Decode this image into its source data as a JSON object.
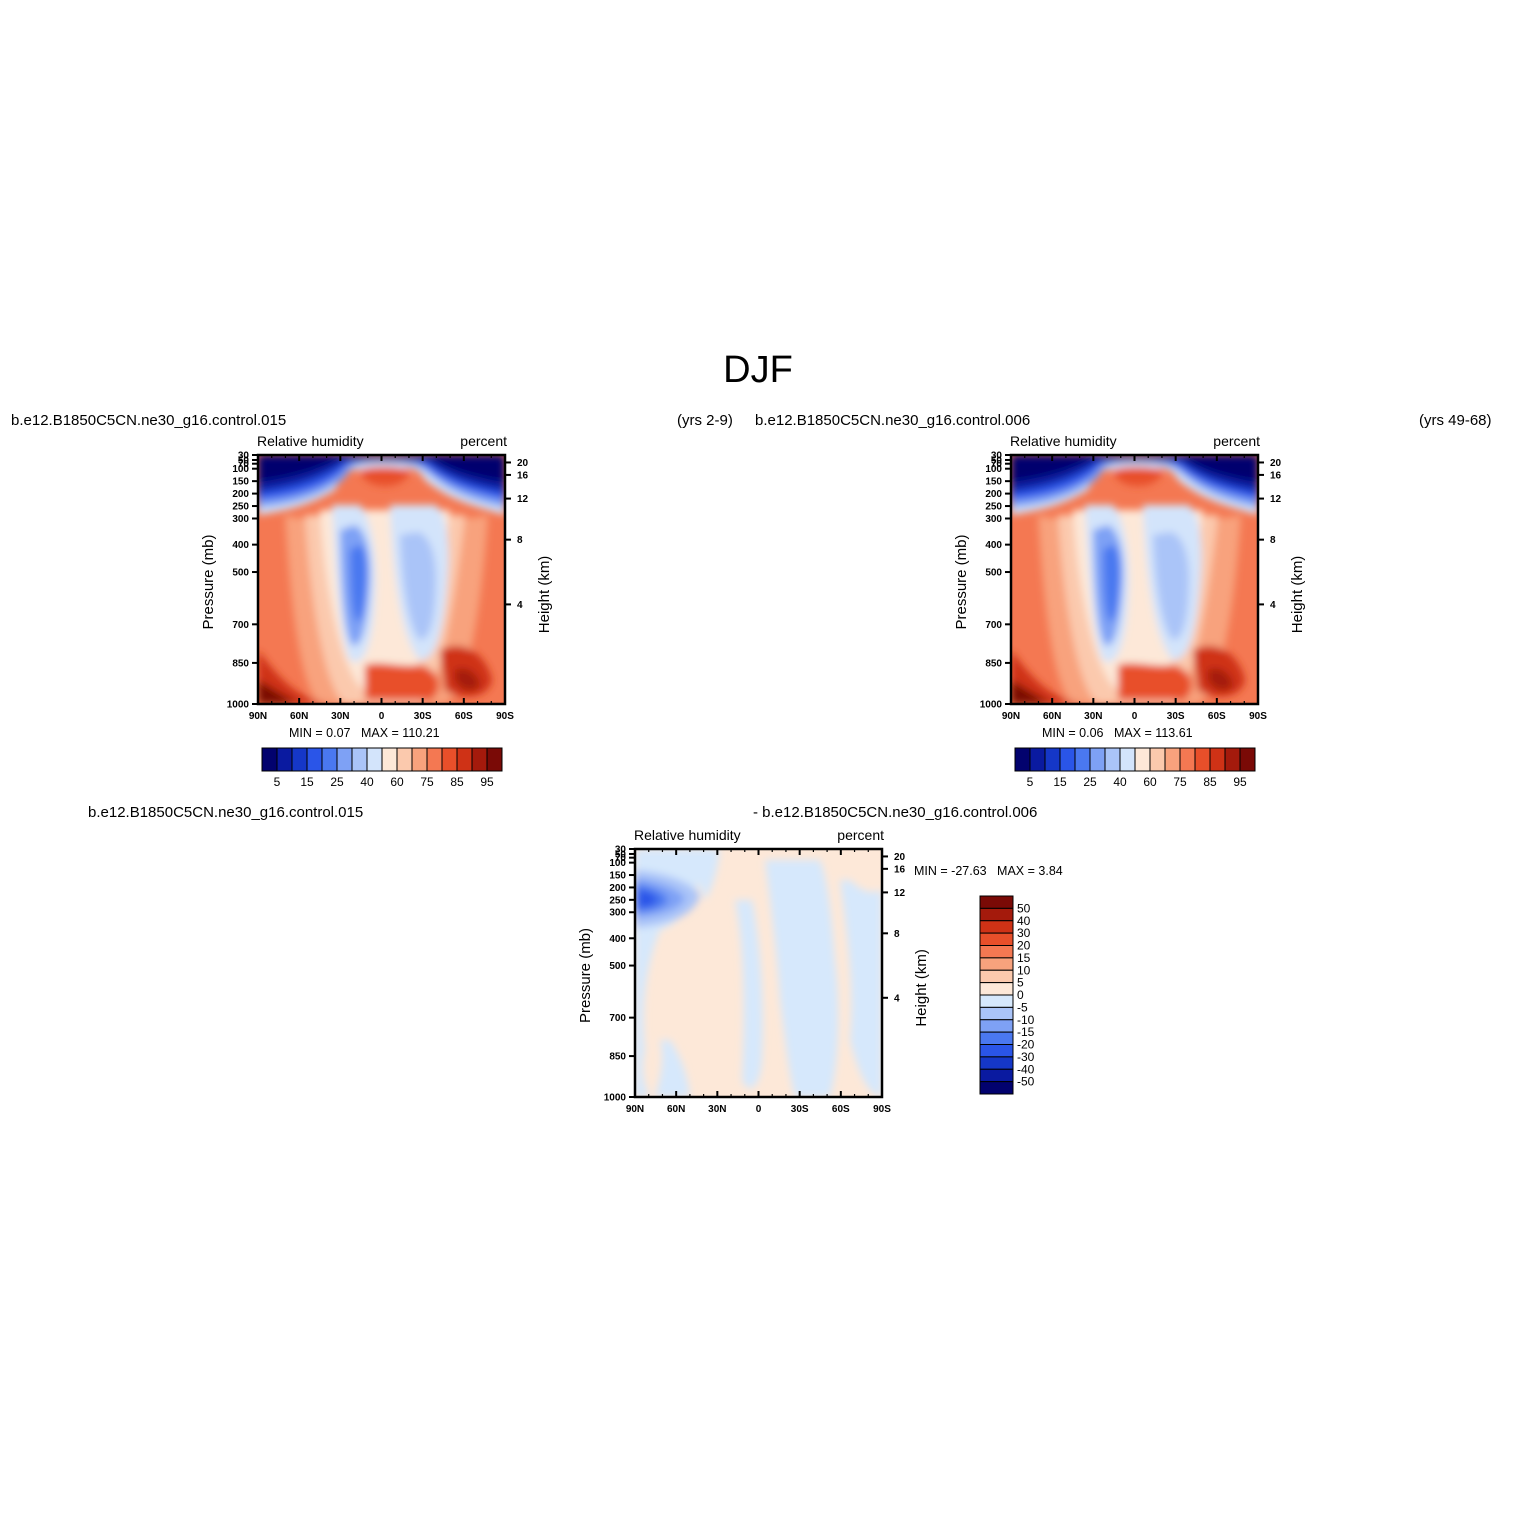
{
  "figure": {
    "title": "DJF",
    "panel1_case": "b.e12.B1850C5CN.ne30_g16.control.015",
    "panel1_years": "(yrs 2-9)",
    "panel2_case": "b.e12.B1850C5CN.ne30_g16.control.006",
    "panel2_years": "(yrs 49-68)",
    "panel3_case_a": "b.e12.B1850C5CN.ne30_g16.control.015",
    "panel3_case_b": "- b.e12.B1850C5CN.ne30_g16.control.006"
  },
  "colors": {
    "abs": [
      "#02026e",
      "#0a1aa0",
      "#1537c8",
      "#2a55e8",
      "#4a78f0",
      "#7ea1f5",
      "#aac4f8",
      "#d3e4fb",
      "#fde8d8",
      "#fbc9ad",
      "#f8a27d",
      "#f47852",
      "#e84f2a",
      "#cf3216",
      "#a41a0c",
      "#7a0a06"
    ],
    "diff": [
      "#02026e",
      "#0a1aa0",
      "#1537c8",
      "#2a55e8",
      "#4a78f0",
      "#7ea1f5",
      "#aac4f8",
      "#d6e8fc",
      "#fde8d8",
      "#fbc9ad",
      "#f8a27d",
      "#f47852",
      "#e84f2a",
      "#cf3216",
      "#a41a0c",
      "#7a0a06"
    ]
  },
  "chart_data": [
    {
      "type": "heatmap",
      "title": "Relative humidity",
      "units": "percent",
      "ylabel": "Pressure (mb)",
      "ylabel_right": "Height (km)",
      "x_ticks": [
        "90N",
        "60N",
        "30N",
        "0",
        "30S",
        "60S",
        "90S"
      ],
      "y_ticks": [
        "30",
        "50",
        "70",
        "100",
        "150",
        "200",
        "250",
        "300",
        "400",
        "500",
        "700",
        "850",
        "1000"
      ],
      "height_ticks": [
        "20",
        "16",
        "12",
        "8",
        "4"
      ],
      "min_label": "MIN =",
      "min_value": "0.07",
      "max_label": "MAX =",
      "max_value": "110.21",
      "colorbar_labels": [
        "5",
        "15",
        "25",
        "40",
        "60",
        "75",
        "85",
        "95"
      ]
    },
    {
      "type": "heatmap",
      "title": "Relative humidity",
      "units": "percent",
      "ylabel": "Pressure (mb)",
      "ylabel_right": "Height (km)",
      "x_ticks": [
        "90N",
        "60N",
        "30N",
        "0",
        "30S",
        "60S",
        "90S"
      ],
      "y_ticks": [
        "30",
        "50",
        "70",
        "100",
        "150",
        "200",
        "250",
        "300",
        "400",
        "500",
        "700",
        "850",
        "1000"
      ],
      "height_ticks": [
        "20",
        "16",
        "12",
        "8",
        "4"
      ],
      "min_label": "MIN =",
      "min_value": "0.06",
      "max_label": "MAX =",
      "max_value": "113.61",
      "colorbar_labels": [
        "5",
        "15",
        "25",
        "40",
        "60",
        "75",
        "85",
        "95"
      ]
    },
    {
      "type": "heatmap",
      "title": "Relative humidity",
      "units": "percent",
      "ylabel": "Pressure (mb)",
      "ylabel_right": "Height (km)",
      "x_ticks": [
        "90N",
        "60N",
        "30N",
        "0",
        "30S",
        "60S",
        "90S"
      ],
      "y_ticks": [
        "30",
        "50",
        "70",
        "100",
        "150",
        "200",
        "250",
        "300",
        "400",
        "500",
        "700",
        "850",
        "1000"
      ],
      "height_ticks": [
        "20",
        "16",
        "12",
        "8",
        "4"
      ],
      "min_label": "MIN =",
      "min_value": "-27.63",
      "max_label": "MAX =",
      "max_value": "3.84",
      "colorbar_labels": [
        "50",
        "40",
        "30",
        "20",
        "15",
        "10",
        "5",
        "0",
        "-5",
        "-10",
        "-15",
        "-20",
        "-30",
        "-40",
        "-50"
      ]
    }
  ]
}
